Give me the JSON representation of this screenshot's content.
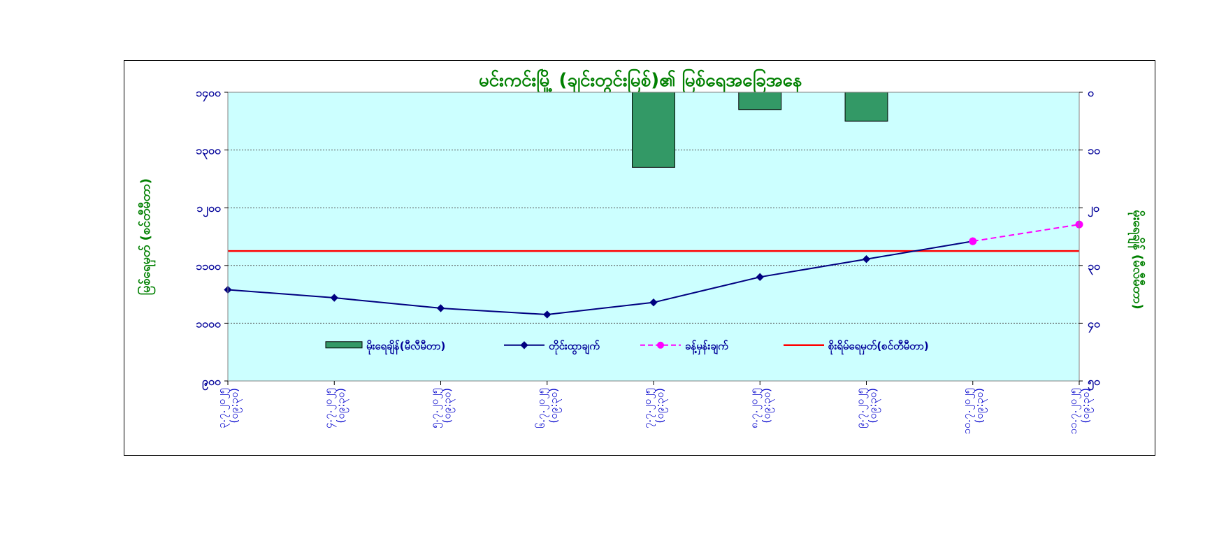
{
  "chart_data": {
    "type": "bar+line",
    "title": "မင်းကင်းမြို့ (ချင်းတွင်းမြစ်)၏ မြစ်ရေအခြေအနေ",
    "ylabel_left": "မြစ်ရေမှတ် (စင်တီမီတာ)",
    "ylabel_right": "မိုးရေချိန် (မီလီမီတာ)",
    "left_axis": {
      "min": 900,
      "max": 1400,
      "ticks": [
        "၁၄၀၀",
        "၁၃၀၀",
        "၁၂၀၀",
        "၁၁၀၀",
        "၁၀၀၀",
        "၉၀၀"
      ]
    },
    "right_axis": {
      "min": 0,
      "max": 50,
      "inverted": true,
      "ticks": [
        "၀",
        "၁၀",
        "၂၀",
        "၃၀",
        "၄၀",
        "၅၀"
      ]
    },
    "categories": [
      [
        "၃.၇.၂၀၂၅",
        "(၀၉:၃၀)"
      ],
      [
        "၄.၇.၂၀၂၅",
        "(၀၉:၃၀)"
      ],
      [
        "၅.၇.၂၀၂၅",
        "(၀၉:၃၀)"
      ],
      [
        "၆.၇.၂၀၂၅",
        "(၀၉:၃၀)"
      ],
      [
        "၇.၇.၂၀၂၅",
        "(၀၉:၃၀)"
      ],
      [
        "၈.၇.၂၀၂၅",
        "(၀၉:၃၀)"
      ],
      [
        "၉.၇.၂၀၂၅",
        "(၀၉:၃၀)"
      ],
      [
        "၁၀.၇.၂၀၂၅",
        "(၀၉:၃၀)"
      ],
      [
        "၁၁.၇.၂၀၂၅",
        "(၀၉:၃၀)"
      ]
    ],
    "series": [
      {
        "name": "မိုးရေချိန်(မီလီမီတာ)",
        "type": "bar",
        "axis": "right",
        "color": "#339966",
        "values": [
          null,
          null,
          null,
          null,
          13,
          3,
          5,
          null,
          null
        ]
      },
      {
        "name": "တိုင်းထွာချက်",
        "type": "line",
        "axis": "left",
        "color": "#000080",
        "values": [
          1058,
          1044,
          1026,
          1015,
          1036,
          1080,
          1111,
          1142,
          null
        ]
      },
      {
        "name": "ခန့်မှန်းချက်",
        "type": "line-dashed",
        "axis": "left",
        "color": "#ff00ff",
        "values": [
          null,
          null,
          null,
          null,
          null,
          null,
          null,
          1142,
          1171
        ]
      },
      {
        "name": "စိုးရိမ်ရေမှတ်(စင်တီမီတာ)",
        "type": "hline",
        "axis": "left",
        "color": "#ff0000",
        "value": 1125
      }
    ],
    "grid": true,
    "legend_position": "bottom-inside"
  }
}
